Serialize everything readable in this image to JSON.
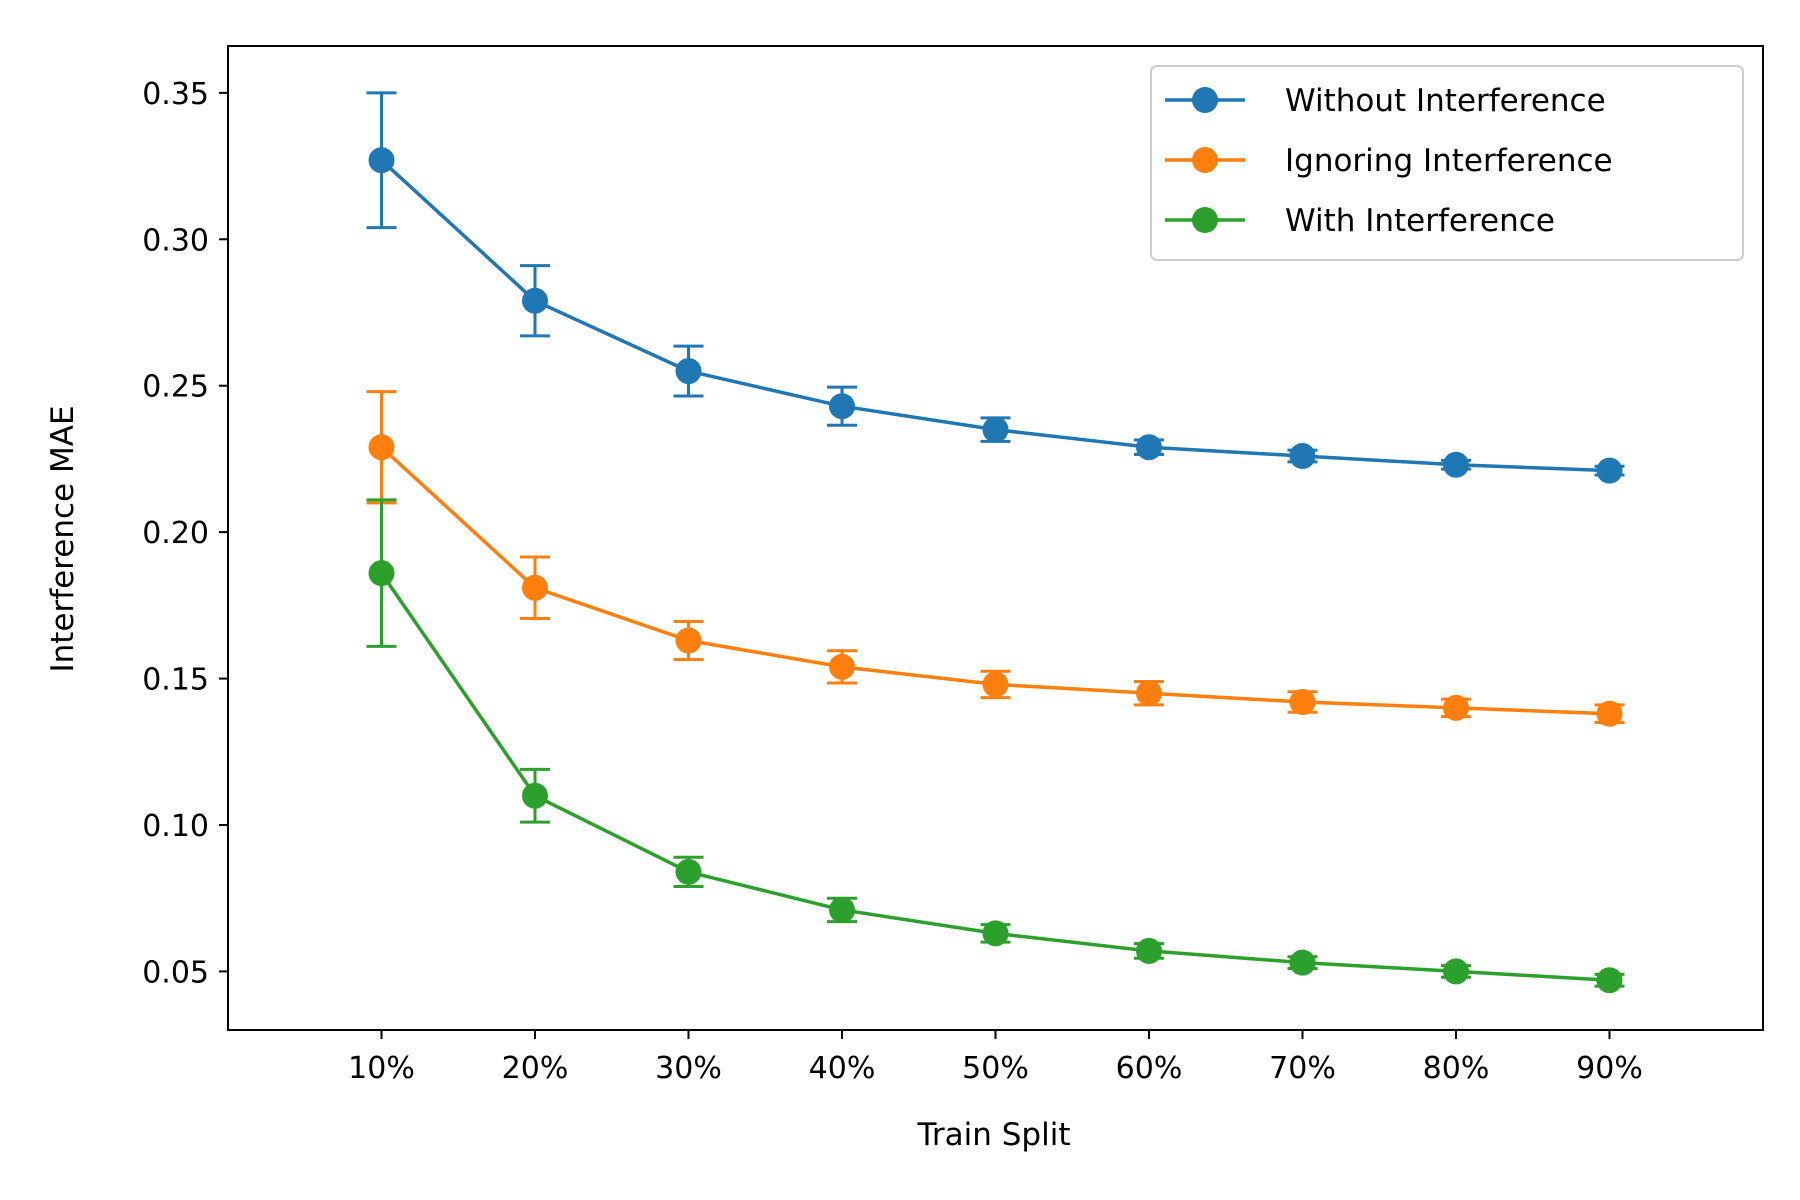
{
  "chart_data": {
    "type": "line",
    "title": "",
    "xlabel": "Train Split",
    "ylabel": "Interference MAE",
    "categories": [
      "10%",
      "20%",
      "30%",
      "40%",
      "50%",
      "60%",
      "70%",
      "80%",
      "90%"
    ],
    "x": [
      10,
      20,
      30,
      40,
      50,
      60,
      70,
      80,
      90
    ],
    "xlim": [
      0,
      100
    ],
    "ylim": [
      0.03,
      0.366
    ],
    "yticks": [
      0.05,
      0.1,
      0.15,
      0.2,
      0.25,
      0.3,
      0.35
    ],
    "ytick_labels": [
      "0.05",
      "0.10",
      "0.15",
      "0.20",
      "0.25",
      "0.30",
      "0.35"
    ],
    "grid": false,
    "legend_position": "top-right",
    "series": [
      {
        "name": "Without Interference",
        "color": "#1f77b4",
        "values": [
          0.327,
          0.279,
          0.255,
          0.243,
          0.235,
          0.229,
          0.226,
          0.223,
          0.221
        ],
        "errors": [
          0.023,
          0.012,
          0.0085,
          0.0065,
          0.004,
          0.0025,
          0.002,
          0.0015,
          0.0015
        ]
      },
      {
        "name": "Ignoring Interference",
        "color": "#ff7f0e",
        "values": [
          0.229,
          0.181,
          0.163,
          0.154,
          0.148,
          0.145,
          0.142,
          0.14,
          0.138
        ],
        "errors": [
          0.019,
          0.0105,
          0.0065,
          0.0055,
          0.0045,
          0.004,
          0.0035,
          0.003,
          0.003
        ]
      },
      {
        "name": "With Interference",
        "color": "#2ca02c",
        "values": [
          0.186,
          0.11,
          0.084,
          0.071,
          0.063,
          0.057,
          0.053,
          0.05,
          0.047
        ],
        "errors": [
          0.025,
          0.009,
          0.005,
          0.004,
          0.003,
          0.0025,
          0.002,
          0.002,
          0.002
        ]
      }
    ]
  }
}
